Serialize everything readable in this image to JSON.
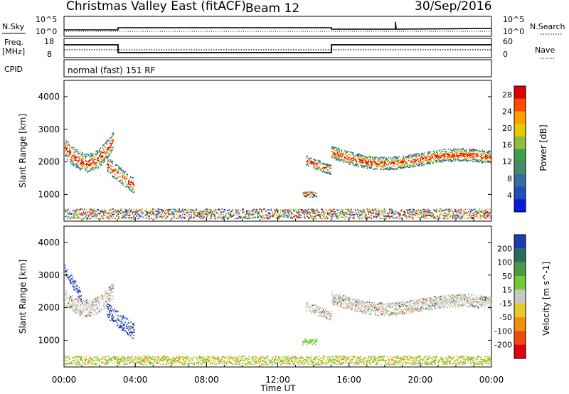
{
  "header": {
    "title": "Christmas Valley East (fitACF)",
    "beam": "Beam 12",
    "date": "30/Sep/2016"
  },
  "panels": {
    "nsky": {
      "label_left": "N.Sky",
      "label_right": "N.Search",
      "left_ticks": [
        "10^5",
        "10^0"
      ],
      "right_ticks": [
        "10^5",
        "10^0"
      ]
    },
    "freq": {
      "label_left_line1": "Freq.",
      "label_left_line2": "[MHz]",
      "label_right": "Nave",
      "left_ticks": [
        "18",
        "8"
      ],
      "right_ticks": [
        "60",
        "0"
      ]
    },
    "cpid": {
      "label_left": "CPID",
      "mode_text": "normal (fast) 151 RF"
    }
  },
  "chart_data": [
    {
      "type": "heatmap",
      "name": "Power",
      "ylabel": "Slant Range [km]",
      "yticks": [
        "4000",
        "3000",
        "2000",
        "1000"
      ],
      "ylim": [
        180,
        4500
      ],
      "colorbar_label": "Power [dB]",
      "colorbar_ticks": [
        "28",
        "24",
        "20",
        "16",
        "12",
        "8",
        "4"
      ],
      "colorbar_colors": [
        "#e00000",
        "#ff4a00",
        "#ff9e00",
        "#e7c800",
        "#8fbf3a",
        "#3aa04a",
        "#4a8a6a",
        "#3a6aa0",
        "#1f4fbf",
        "#0a1adc"
      ],
      "colorbar_range": [
        0,
        30
      ]
    },
    {
      "type": "heatmap",
      "name": "Velocity",
      "ylabel": "Slant Range [km]",
      "yticks": [
        "4000",
        "3000",
        "2000",
        "1000"
      ],
      "ylim": [
        180,
        4500
      ],
      "colorbar_label": "Velocity [m s^-1]",
      "colorbar_ticks": [
        "200",
        "100",
        "50",
        "15",
        "-15",
        "-50",
        "-100",
        "-200"
      ],
      "colorbar_colors": [
        "#1b3cb0",
        "#2c6c5c",
        "#4e9a40",
        "#76c83a",
        "#c8c8c0",
        "#e9c82a",
        "#f09010",
        "#f04a0a",
        "#e00010"
      ],
      "colorbar_range": [
        -250,
        250
      ]
    }
  ],
  "x_axis": {
    "label": "Time UT",
    "ticks": [
      "00:00",
      "04:00",
      "08:00",
      "12:00",
      "16:00",
      "20:00",
      "00:00"
    ]
  }
}
